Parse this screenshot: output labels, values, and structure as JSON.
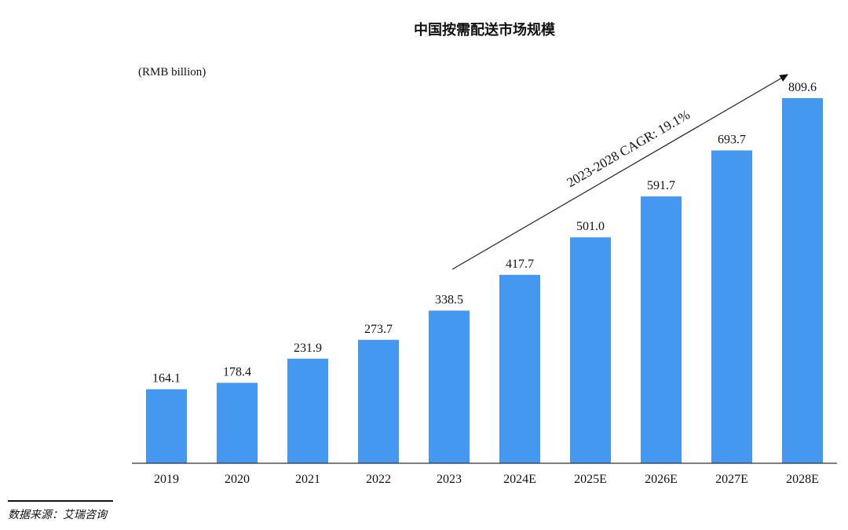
{
  "chart_data": {
    "type": "bar",
    "title": "中国按需配送市场规模",
    "ylabel": "(RMB billion)",
    "xlabel": "",
    "categories": [
      "2019",
      "2020",
      "2021",
      "2022",
      "2023",
      "2024E",
      "2025E",
      "2026E",
      "2027E",
      "2028E"
    ],
    "values": [
      164.1,
      178.4,
      231.9,
      273.7,
      338.5,
      417.7,
      501.0,
      591.7,
      693.7,
      809.6
    ],
    "value_labels": [
      "164.1",
      "178.4",
      "231.9",
      "273.7",
      "338.5",
      "417.7",
      "501.0",
      "591.7",
      "693.7",
      "809.6"
    ],
    "ylim": [
      0,
      820
    ],
    "grid": false,
    "bar_color": "#4598F0",
    "annotation": "2023-2028 CAGR: 19.1%",
    "source": "数据来源：艾瑞咨询"
  }
}
